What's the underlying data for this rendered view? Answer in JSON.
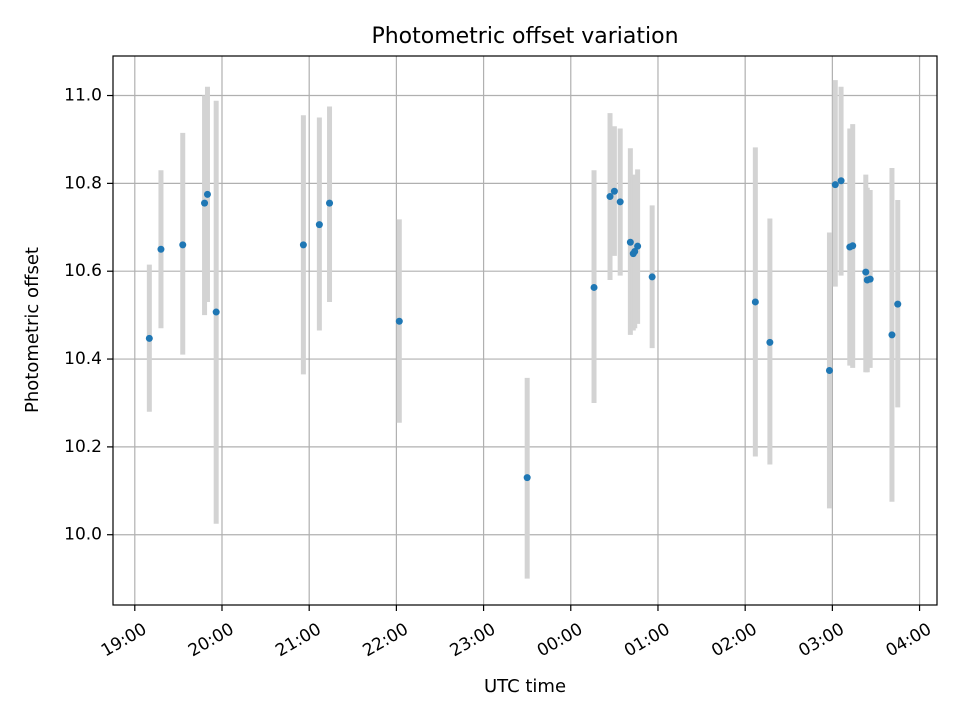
{
  "chart_data": {
    "type": "scatter",
    "title": "Photometric offset variation",
    "xlabel": "UTC time",
    "ylabel": "Photometric offset",
    "x_range_hours": [
      18.75,
      28.2
    ],
    "x_tick_labels": [
      "19:00",
      "20:00",
      "21:00",
      "22:00",
      "23:00",
      "00:00",
      "01:00",
      "02:00",
      "03:00",
      "04:00"
    ],
    "x_tick_hours": [
      19,
      20,
      21,
      22,
      23,
      24,
      25,
      26,
      27,
      28
    ],
    "ylim": [
      9.84,
      11.09
    ],
    "y_ticks": [
      10.0,
      10.2,
      10.4,
      10.6,
      10.8,
      11.0
    ],
    "y_tick_labels": [
      "10.0",
      "10.2",
      "10.4",
      "10.6",
      "10.8",
      "11.0"
    ],
    "grid": true,
    "colors": {
      "point": "#1f77b4",
      "errorbar": "#d3d3d3",
      "grid": "#b0b0b0"
    },
    "points": [
      {
        "time": "19:10",
        "y": 10.447,
        "lo": 10.28,
        "hi": 10.615
      },
      {
        "time": "19:18",
        "y": 10.65,
        "lo": 10.47,
        "hi": 10.83
      },
      {
        "time": "19:33",
        "y": 10.66,
        "lo": 10.41,
        "hi": 10.915
      },
      {
        "time": "19:48",
        "y": 10.755,
        "lo": 10.5,
        "hi": 11.0
      },
      {
        "time": "19:50",
        "y": 10.775,
        "lo": 10.53,
        "hi": 11.02
      },
      {
        "time": "19:56",
        "y": 10.507,
        "lo": 10.025,
        "hi": 10.988
      },
      {
        "time": "20:56",
        "y": 10.66,
        "lo": 10.365,
        "hi": 10.955
      },
      {
        "time": "21:07",
        "y": 10.706,
        "lo": 10.465,
        "hi": 10.95
      },
      {
        "time": "21:14",
        "y": 10.755,
        "lo": 10.53,
        "hi": 10.975
      },
      {
        "time": "22:02",
        "y": 10.486,
        "lo": 10.255,
        "hi": 10.718
      },
      {
        "time": "23:30",
        "y": 10.13,
        "lo": 9.9,
        "hi": 10.357
      },
      {
        "time": "00:16",
        "y": 10.563,
        "lo": 10.3,
        "hi": 10.83
      },
      {
        "time": "00:27",
        "y": 10.77,
        "lo": 10.58,
        "hi": 10.96
      },
      {
        "time": "00:30",
        "y": 10.782,
        "lo": 10.635,
        "hi": 10.93
      },
      {
        "time": "00:34",
        "y": 10.758,
        "lo": 10.59,
        "hi": 10.925
      },
      {
        "time": "00:41",
        "y": 10.666,
        "lo": 10.455,
        "hi": 10.88
      },
      {
        "time": "00:43",
        "y": 10.64,
        "lo": 10.465,
        "hi": 10.815
      },
      {
        "time": "00:44",
        "y": 10.645,
        "lo": 10.47,
        "hi": 10.82
      },
      {
        "time": "00:46",
        "y": 10.657,
        "lo": 10.48,
        "hi": 10.832
      },
      {
        "time": "00:56",
        "y": 10.587,
        "lo": 10.425,
        "hi": 10.75
      },
      {
        "time": "02:07",
        "y": 10.53,
        "lo": 10.178,
        "hi": 10.882
      },
      {
        "time": "02:17",
        "y": 10.438,
        "lo": 10.16,
        "hi": 10.72
      },
      {
        "time": "02:58",
        "y": 10.374,
        "lo": 10.06,
        "hi": 10.688
      },
      {
        "time": "03:02",
        "y": 10.797,
        "lo": 10.565,
        "hi": 11.035
      },
      {
        "time": "03:06",
        "y": 10.806,
        "lo": 10.59,
        "hi": 11.02
      },
      {
        "time": "03:12",
        "y": 10.655,
        "lo": 10.385,
        "hi": 10.925
      },
      {
        "time": "03:14",
        "y": 10.658,
        "lo": 10.38,
        "hi": 10.935
      },
      {
        "time": "03:23",
        "y": 10.598,
        "lo": 10.37,
        "hi": 10.82
      },
      {
        "time": "03:24",
        "y": 10.58,
        "lo": 10.37,
        "hi": 10.79
      },
      {
        "time": "03:26",
        "y": 10.582,
        "lo": 10.38,
        "hi": 10.785
      },
      {
        "time": "03:41",
        "y": 10.455,
        "lo": 10.075,
        "hi": 10.835
      },
      {
        "time": "03:45",
        "y": 10.525,
        "lo": 10.29,
        "hi": 10.762
      }
    ]
  }
}
